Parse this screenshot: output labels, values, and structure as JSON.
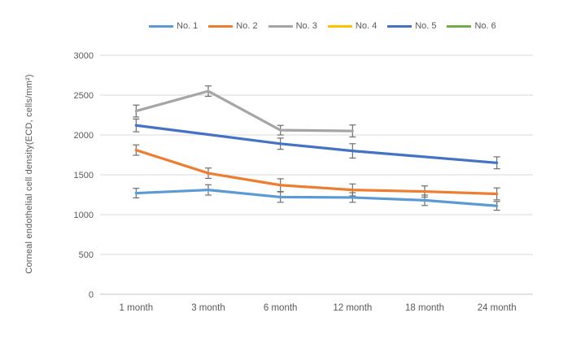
{
  "colors": {
    "background": "#FFFFFF",
    "grid": "#D9D9D9",
    "axis_line": "#C6C6C6",
    "tick_text": "#595959",
    "error_bar": "#6E6E6E"
  },
  "chart_data": {
    "type": "line",
    "title": "",
    "xlabel": "",
    "ylabel": "Corneal endothelial cell density(ECD, cells/mm²)",
    "categories": [
      "1 month",
      "3 month",
      "6 month",
      "12 month",
      "18 month",
      "24 month"
    ],
    "ylim": [
      0,
      3000
    ],
    "yticks": [
      0,
      500,
      1000,
      1500,
      2000,
      2500,
      3000
    ],
    "grid": true,
    "legend_position": "top",
    "error_bars": true,
    "series": [
      {
        "name": "No. 1",
        "color": "#5B9BD5",
        "values": [
          1270,
          1310,
          1220,
          1215,
          1180,
          1110
        ],
        "errors": [
          60,
          65,
          65,
          60,
          65,
          55
        ]
      },
      {
        "name": "No. 2",
        "color": "#ED7D31",
        "values": [
          1810,
          1520,
          1370,
          1310,
          1290,
          1260
        ],
        "errors": [
          65,
          65,
          80,
          75,
          70,
          75
        ]
      },
      {
        "name": "No. 3",
        "color": "#A5A5A5",
        "values": [
          2300,
          2550,
          2060,
          2050,
          null,
          null
        ],
        "errors": [
          75,
          65,
          60,
          75,
          null,
          null
        ]
      },
      {
        "name": "No. 4",
        "color": "#FFC000",
        "values": [
          null,
          null,
          null,
          null,
          null,
          null
        ],
        "errors": [
          null,
          null,
          null,
          null,
          null,
          null
        ]
      },
      {
        "name": "No. 5",
        "color": "#4472C4",
        "values": [
          2120,
          null,
          1890,
          1800,
          null,
          1650
        ],
        "errors": [
          80,
          null,
          70,
          90,
          null,
          75
        ]
      },
      {
        "name": "No. 6",
        "color": "#70AD47",
        "values": [
          null,
          null,
          null,
          null,
          null,
          null
        ],
        "errors": [
          null,
          null,
          null,
          null,
          null,
          null
        ]
      }
    ]
  }
}
